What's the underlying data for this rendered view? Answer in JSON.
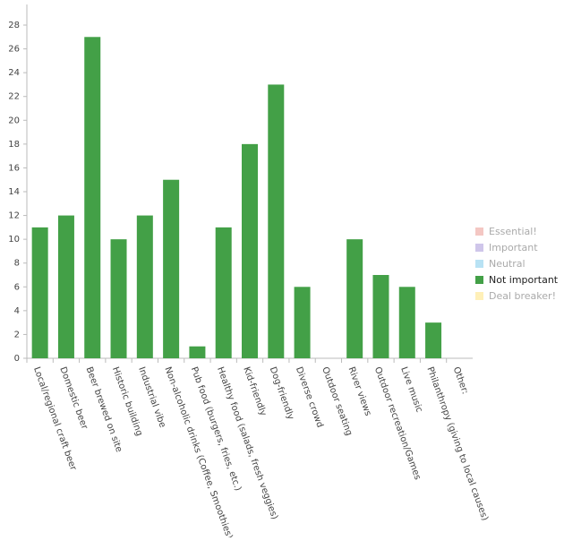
{
  "chart_data": {
    "type": "bar",
    "categories": [
      "Local/regional craft beer",
      "Domestic beer",
      "Beer brewed on site",
      "Historic building",
      "Industrial vibe",
      "Non-alcoholic drinks (Coffee, Smoothies)",
      "Pub food (burgers, fries, etc.)",
      "Healthy food (salads, fresh veggies)",
      "Kid-friendly",
      "Dog-friendly",
      "Diverse crowd",
      "Outdoor seating",
      "River views",
      "Outdoor recreation/Games",
      "Live music",
      "Philanthropy (giving to local causes)",
      "Other:"
    ],
    "series": [
      {
        "name": "Essential!",
        "color": "#f4c7c3",
        "visible": false,
        "values": [
          null,
          null,
          null,
          null,
          null,
          null,
          null,
          null,
          null,
          null,
          null,
          null,
          null,
          null,
          null,
          null,
          null
        ]
      },
      {
        "name": "Important",
        "color": "#cfc6ea",
        "visible": false,
        "values": [
          null,
          null,
          null,
          null,
          null,
          null,
          null,
          null,
          null,
          null,
          null,
          null,
          null,
          null,
          null,
          null,
          null
        ]
      },
      {
        "name": "Neutral",
        "color": "#b8e2f4",
        "visible": false,
        "values": [
          null,
          null,
          null,
          null,
          null,
          null,
          null,
          null,
          null,
          null,
          null,
          null,
          null,
          null,
          null,
          null,
          null
        ]
      },
      {
        "name": "Not important",
        "color": "#43a047",
        "visible": true,
        "values": [
          11,
          12,
          27,
          10,
          12,
          15,
          1,
          11,
          18,
          23,
          6,
          0,
          10,
          7,
          6,
          3,
          0
        ]
      },
      {
        "name": "Deal breaker!",
        "color": "#fff0b8",
        "visible": false,
        "values": [
          null,
          null,
          null,
          null,
          null,
          null,
          null,
          null,
          null,
          null,
          null,
          null,
          null,
          null,
          null,
          null,
          null
        ]
      }
    ],
    "ylim": [
      0,
      28
    ],
    "yticks": [
      0,
      2,
      4,
      6,
      8,
      10,
      12,
      14,
      16,
      18,
      20,
      22,
      24,
      26,
      28
    ],
    "legend": "right"
  }
}
